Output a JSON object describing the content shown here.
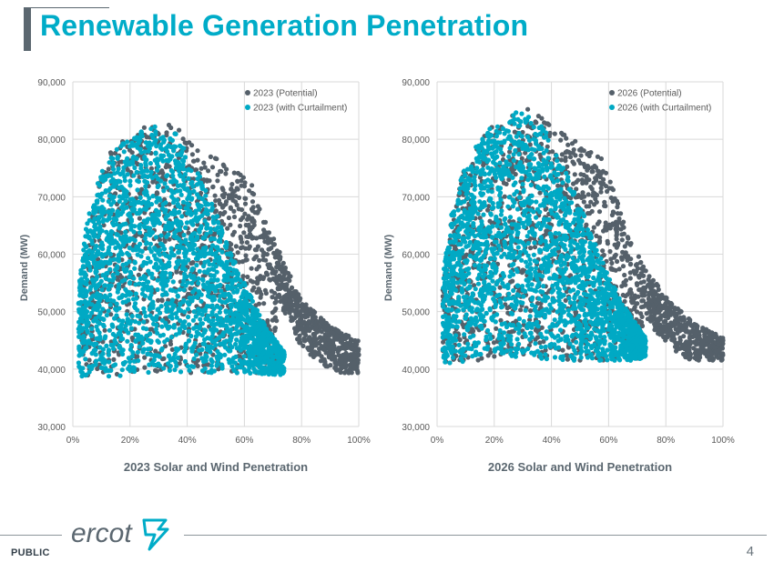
{
  "slide": {
    "title": "Renewable Generation Penetration",
    "classification": "PUBLIC",
    "page_number": "4",
    "logo_text": "ercot"
  },
  "colors": {
    "title": "#00ACC8",
    "potential": "#55606A",
    "curtailment": "#00A9C4",
    "axis_text": "#595959",
    "grid": "#D9D9D9"
  },
  "chart_data": [
    {
      "type": "scatter",
      "xlabel": "2023 Solar and Wind Penetration",
      "ylabel": "Demand (MW)",
      "xlim": [
        0,
        1
      ],
      "ylim": [
        30000,
        90000
      ],
      "xticks": [
        "0%",
        "20%",
        "40%",
        "60%",
        "80%",
        "100%"
      ],
      "yticks": [
        "30,000",
        "40,000",
        "50,000",
        "60,000",
        "70,000",
        "80,000",
        "90,000"
      ],
      "grid": true,
      "legend_position": "top-right",
      "series": [
        {
          "name": "2023 (Potential)",
          "color": "#55606A",
          "summary": {
            "x_range": [
              0.03,
              1.0
            ],
            "y_range": [
              38800,
              83000
            ],
            "peak": [
              0.35,
              83000
            ],
            "tail_point": [
              1.0,
              42500
            ]
          },
          "envelope": [
            [
              0.03,
              52000
            ],
            [
              0.06,
              65000
            ],
            [
              0.12,
              78000
            ],
            [
              0.22,
              82000
            ],
            [
              0.35,
              83000
            ],
            [
              0.45,
              78000
            ],
            [
              0.55,
              75500
            ],
            [
              0.62,
              73000
            ],
            [
              0.7,
              63000
            ],
            [
              0.8,
              52000
            ],
            [
              0.9,
              47500
            ],
            [
              1.0,
              45000
            ]
          ]
        },
        {
          "name": "2023 (with Curtailment)",
          "color": "#00A9C4",
          "summary": {
            "x_range": [
              0.02,
              0.74
            ],
            "y_range": [
              38500,
              82500
            ],
            "peak": [
              0.3,
              82500
            ]
          },
          "envelope": [
            [
              0.02,
              54000
            ],
            [
              0.05,
              66000
            ],
            [
              0.1,
              75000
            ],
            [
              0.18,
              80000
            ],
            [
              0.27,
              82500
            ],
            [
              0.36,
              81000
            ],
            [
              0.44,
              74000
            ],
            [
              0.52,
              65000
            ],
            [
              0.6,
              55000
            ],
            [
              0.68,
              47000
            ],
            [
              0.74,
              43000
            ]
          ]
        }
      ]
    },
    {
      "type": "scatter",
      "xlabel": "2026 Solar and Wind Penetration",
      "ylabel": "Demand (MW)",
      "xlim": [
        0,
        1
      ],
      "ylim": [
        30000,
        90000
      ],
      "xticks": [
        "0%",
        "20%",
        "40%",
        "60%",
        "80%",
        "100%"
      ],
      "yticks": [
        "30,000",
        "40,000",
        "50,000",
        "60,000",
        "70,000",
        "80,000",
        "90,000"
      ],
      "grid": true,
      "legend_position": "top-right",
      "series": [
        {
          "name": "2026 (Potential)",
          "color": "#55606A",
          "summary": {
            "x_range": [
              0.02,
              1.0
            ],
            "y_range": [
              41000,
              85500
            ],
            "peak": [
              0.32,
              85500
            ],
            "tail_point": [
              1.0,
              45000
            ]
          },
          "envelope": [
            [
              0.02,
              55000
            ],
            [
              0.05,
              66000
            ],
            [
              0.1,
              76000
            ],
            [
              0.2,
              83000
            ],
            [
              0.32,
              85500
            ],
            [
              0.42,
              82000
            ],
            [
              0.52,
              78500
            ],
            [
              0.58,
              77000
            ],
            [
              0.64,
              68000
            ],
            [
              0.72,
              58000
            ],
            [
              0.82,
              51500
            ],
            [
              0.9,
              48000
            ],
            [
              1.0,
              45500
            ]
          ]
        },
        {
          "name": "2026 (with Curtailment)",
          "color": "#00A9C4",
          "summary": {
            "x_range": [
              0.02,
              0.73
            ],
            "y_range": [
              41000,
              85000
            ],
            "peak": [
              0.32,
              85000
            ]
          },
          "envelope": [
            [
              0.02,
              56000
            ],
            [
              0.05,
              67000
            ],
            [
              0.1,
              76000
            ],
            [
              0.18,
              82000
            ],
            [
              0.28,
              85000
            ],
            [
              0.36,
              83000
            ],
            [
              0.44,
              76000
            ],
            [
              0.52,
              66000
            ],
            [
              0.6,
              56000
            ],
            [
              0.68,
              49000
            ],
            [
              0.73,
              45500
            ]
          ]
        }
      ]
    }
  ]
}
